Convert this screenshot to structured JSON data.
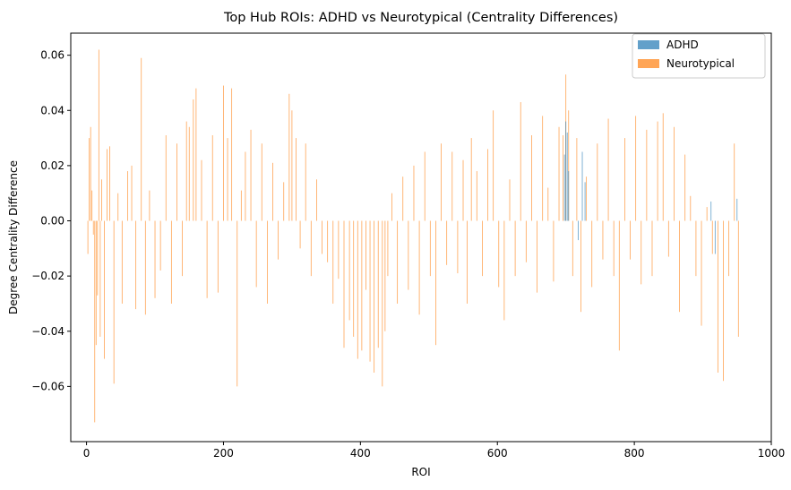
{
  "chart_data": {
    "type": "bar",
    "title": "Top Hub ROIs: ADHD vs Neurotypical (Centrality Differences)",
    "xlabel": "ROI",
    "ylabel": "Degree Centrality Difference",
    "xlim": [
      -23,
      1000
    ],
    "ylim": [
      -0.08,
      0.068
    ],
    "xticks": [
      0,
      200,
      400,
      600,
      800,
      1000
    ],
    "xtick_labels": [
      "0",
      "200",
      "400",
      "600",
      "800",
      "1000"
    ],
    "yticks": [
      -0.06,
      -0.04,
      -0.02,
      0.0,
      0.02,
      0.04,
      0.06
    ],
    "ytick_labels": [
      "−0.06",
      "−0.04",
      "−0.02",
      "0.00",
      "0.02",
      "0.04",
      "0.06"
    ],
    "grid": false,
    "legend_position": "upper right",
    "series": [
      {
        "name": "ADHD",
        "color": "#1f77b4",
        "alpha": 0.7,
        "x": [
          698,
          700,
          702,
          704,
          718,
          724,
          728,
          912,
          918,
          950
        ],
        "values": [
          0.024,
          0.036,
          0.032,
          0.018,
          -0.007,
          0.025,
          0.014,
          0.007,
          -0.012,
          0.008
        ]
      },
      {
        "name": "Neurotypical",
        "color": "#ff7f0e",
        "alpha": 0.7,
        "x": [
          2,
          4,
          6,
          8,
          10,
          12,
          14,
          16,
          18,
          20,
          22,
          26,
          30,
          34,
          40,
          46,
          52,
          60,
          66,
          72,
          80,
          86,
          92,
          100,
          108,
          116,
          124,
          132,
          140,
          146,
          150,
          156,
          160,
          168,
          176,
          184,
          192,
          200,
          206,
          212,
          220,
          226,
          232,
          240,
          248,
          256,
          264,
          272,
          280,
          288,
          296,
          300,
          306,
          312,
          320,
          328,
          336,
          344,
          352,
          360,
          368,
          376,
          384,
          390,
          396,
          402,
          408,
          414,
          420,
          426,
          432,
          436,
          440,
          446,
          454,
          462,
          470,
          478,
          486,
          494,
          502,
          510,
          518,
          526,
          534,
          542,
          550,
          556,
          562,
          570,
          578,
          586,
          594,
          602,
          610,
          618,
          626,
          634,
          642,
          650,
          658,
          666,
          674,
          682,
          690,
          696,
          700,
          704,
          710,
          716,
          722,
          730,
          738,
          746,
          754,
          762,
          770,
          778,
          786,
          794,
          802,
          810,
          818,
          826,
          834,
          842,
          850,
          858,
          866,
          874,
          882,
          890,
          898,
          906,
          914,
          922,
          930,
          938,
          946,
          952
        ],
        "values": [
          -0.012,
          0.03,
          0.034,
          0.011,
          -0.005,
          -0.073,
          -0.045,
          -0.027,
          0.062,
          -0.042,
          0.015,
          -0.05,
          0.026,
          0.027,
          -0.059,
          0.01,
          -0.03,
          0.018,
          0.02,
          -0.032,
          0.059,
          -0.034,
          0.011,
          -0.028,
          -0.018,
          0.031,
          -0.03,
          0.028,
          -0.02,
          0.036,
          0.034,
          0.044,
          0.048,
          0.022,
          -0.028,
          0.031,
          -0.026,
          0.049,
          0.03,
          0.048,
          -0.06,
          0.011,
          0.025,
          0.033,
          -0.024,
          0.028,
          -0.03,
          0.021,
          -0.014,
          0.014,
          0.046,
          0.04,
          0.03,
          -0.01,
          0.028,
          -0.02,
          0.015,
          -0.012,
          -0.015,
          -0.03,
          -0.021,
          -0.046,
          -0.036,
          -0.042,
          -0.05,
          -0.047,
          -0.025,
          -0.051,
          -0.055,
          -0.046,
          -0.06,
          -0.04,
          -0.02,
          0.01,
          -0.03,
          0.016,
          -0.025,
          0.02,
          -0.034,
          0.025,
          -0.02,
          -0.045,
          0.028,
          -0.016,
          0.025,
          -0.019,
          0.022,
          -0.03,
          0.03,
          0.018,
          -0.02,
          0.026,
          0.04,
          -0.024,
          -0.036,
          0.015,
          -0.02,
          0.043,
          -0.015,
          0.031,
          -0.026,
          0.038,
          0.012,
          -0.022,
          0.034,
          0.031,
          0.053,
          0.04,
          -0.02,
          0.03,
          -0.033,
          0.016,
          -0.024,
          0.028,
          -0.014,
          0.037,
          -0.02,
          -0.047,
          0.03,
          -0.014,
          0.038,
          -0.023,
          0.033,
          -0.02,
          0.036,
          0.039,
          -0.013,
          0.034,
          -0.033,
          0.024,
          0.009,
          -0.02,
          -0.038,
          0.005,
          -0.012,
          -0.055,
          -0.058,
          -0.02,
          0.028,
          -0.042
        ]
      }
    ]
  }
}
